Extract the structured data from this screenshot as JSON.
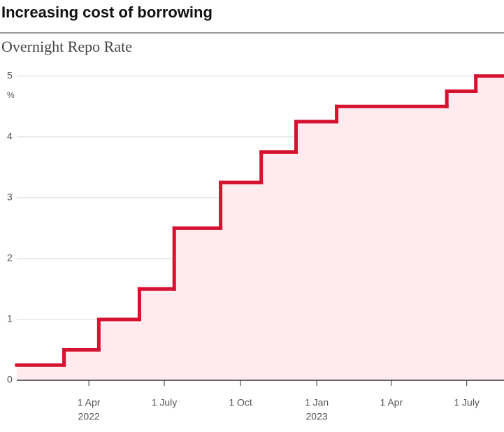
{
  "chart_data": {
    "type": "step",
    "title": "Increasing cost of borrowing",
    "subtitle": "Overnight Repo Rate",
    "y_unit": "%",
    "x": [
      "2022-01-04",
      "2022-03-02",
      "2022-04-13",
      "2022-06-01",
      "2022-07-13",
      "2022-09-07",
      "2022-10-26",
      "2022-12-07",
      "2023-01-25",
      "2023-06-07",
      "2023-07-12"
    ],
    "values": [
      0.25,
      0.5,
      1.0,
      1.5,
      2.5,
      3.25,
      3.75,
      4.25,
      4.5,
      4.75,
      5.0
    ],
    "color": "#d5122f",
    "fill": "#fdebef",
    "xlim": [
      "2022-01-04",
      "2023-08-15"
    ],
    "xticks": [
      {
        "value": "2022-04-01",
        "label": "1 Apr"
      },
      {
        "value": "2022-07-01",
        "label": "1 July"
      },
      {
        "value": "2022-10-01",
        "label": "1 Oct"
      },
      {
        "value": "2023-01-01",
        "label": "1 Jan"
      },
      {
        "value": "2023-04-01",
        "label": "1 Apr"
      },
      {
        "value": "2023-07-01",
        "label": "1 July"
      }
    ],
    "xtick_years": [
      {
        "value": "2022-04-01",
        "label": "2022"
      },
      {
        "value": "2023-01-01",
        "label": "2023"
      }
    ],
    "ylim": [
      0,
      5.1
    ],
    "yticks": [
      0,
      1,
      2,
      3,
      4,
      5
    ],
    "grid": true
  }
}
